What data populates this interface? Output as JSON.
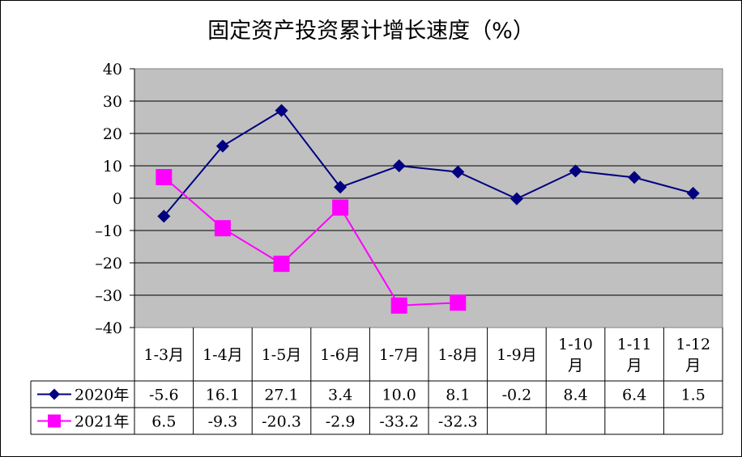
{
  "chart_data": {
    "type": "line",
    "title": "固定资产投资累计增长速度（%）",
    "categories": [
      [
        "1-3月"
      ],
      [
        "1-4月"
      ],
      [
        "1-5月"
      ],
      [
        "1-6月"
      ],
      [
        "1-7月"
      ],
      [
        "1-8月"
      ],
      [
        "1-9月"
      ],
      [
        "1-10",
        "月"
      ],
      [
        "1-11",
        "月"
      ],
      [
        "1-12",
        "月"
      ]
    ],
    "y_ticks": [
      "40",
      "30",
      "20",
      "10",
      "0",
      "–10",
      "–20",
      "–30",
      "–40"
    ],
    "ylim": [
      -40,
      40
    ],
    "y_step": 10,
    "grid": true,
    "legend": "data-table-left",
    "series": [
      {
        "name": "2020年",
        "color": "#000080",
        "marker": "diamond",
        "values": [
          -5.6,
          16.1,
          27.1,
          3.4,
          10.0,
          8.1,
          -0.2,
          8.4,
          6.4,
          1.5
        ],
        "labels": [
          "-5.6",
          "16.1",
          "27.1",
          "3.4",
          "10.0",
          "8.1",
          "-0.2",
          "8.4",
          "6.4",
          "1.5"
        ]
      },
      {
        "name": "2021年",
        "color": "#FF00FF",
        "marker": "square",
        "values": [
          6.5,
          -9.3,
          -20.3,
          -2.9,
          -33.2,
          -32.3,
          null,
          null,
          null,
          null
        ],
        "labels": [
          "6.5",
          "-9.3",
          "-20.3",
          "-2.9",
          "-33.2",
          "-32.3",
          "",
          "",
          "",
          ""
        ]
      }
    ]
  }
}
